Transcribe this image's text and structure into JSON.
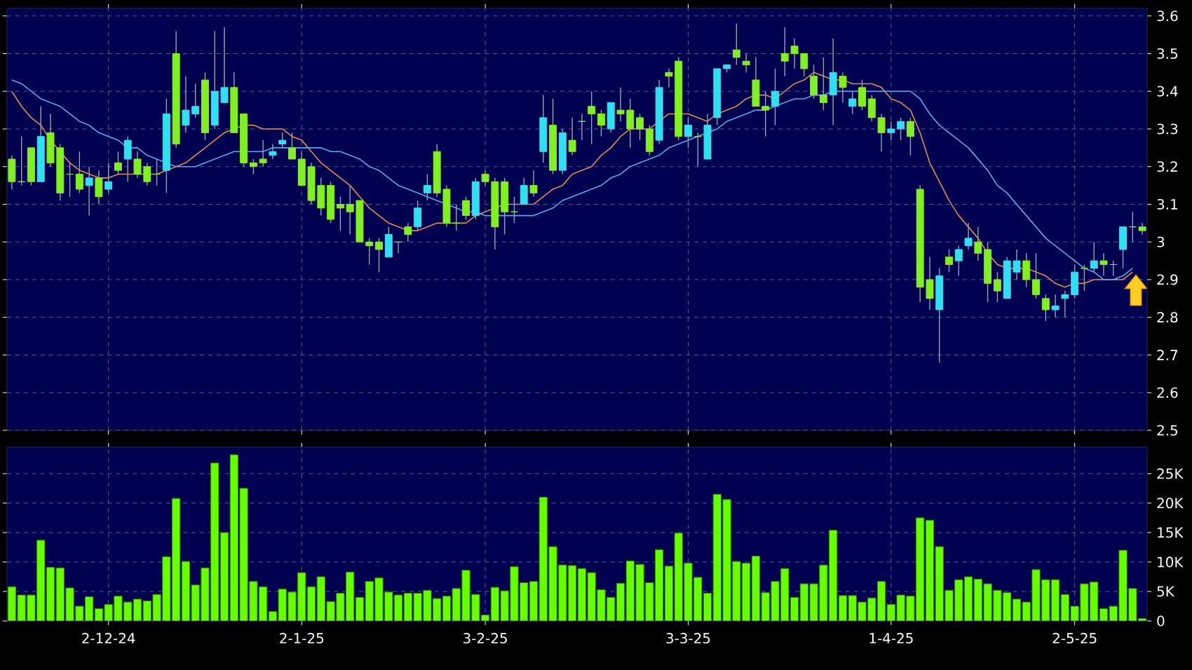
{
  "chart_data": [
    {
      "type": "candlestick",
      "categories": [
        null,
        null,
        null,
        null,
        null,
        null,
        null,
        null,
        null,
        null,
        null,
        null,
        null,
        null,
        null,
        null,
        null,
        null,
        null,
        null,
        null,
        null,
        null,
        null,
        null,
        null,
        null,
        null,
        null,
        null,
        null,
        null,
        null,
        null,
        null,
        null,
        null,
        null,
        null,
        null,
        null,
        null,
        null,
        null,
        null,
        null,
        null,
        null,
        null,
        null,
        null,
        null,
        null,
        null,
        null,
        null,
        null,
        null,
        null,
        null,
        null,
        null,
        null,
        null,
        null,
        null,
        null,
        null,
        null,
        null,
        null,
        null,
        null,
        null,
        null,
        null,
        null,
        null,
        null,
        null,
        null,
        null,
        null,
        null,
        null,
        null,
        null,
        null,
        null,
        null,
        null,
        null,
        null,
        null,
        null,
        null,
        null,
        null,
        null,
        null,
        null,
        null,
        null,
        null,
        null,
        null,
        null,
        null,
        null,
        null,
        null,
        null,
        null,
        null,
        null,
        null,
        null,
        null
      ],
      "ohlc": [
        [
          3.22,
          3.23,
          3.14,
          3.16
        ],
        [
          3.16,
          3.28,
          3.15,
          3.16
        ],
        [
          3.25,
          3.25,
          3.15,
          3.16
        ],
        [
          3.16,
          3.36,
          3.16,
          3.28
        ],
        [
          3.29,
          3.34,
          3.2,
          3.21
        ],
        [
          3.25,
          3.26,
          3.11,
          3.13
        ],
        [
          3.18,
          3.21,
          3.12,
          3.18
        ],
        [
          3.18,
          3.24,
          3.13,
          3.14
        ],
        [
          3.15,
          3.2,
          3.07,
          3.17
        ],
        [
          3.17,
          3.19,
          3.1,
          3.12
        ],
        [
          3.14,
          3.21,
          3.13,
          3.16
        ],
        [
          3.21,
          3.24,
          3.18,
          3.19
        ],
        [
          3.22,
          3.28,
          3.16,
          3.27
        ],
        [
          3.22,
          3.24,
          3.17,
          3.18
        ],
        [
          3.2,
          3.21,
          3.15,
          3.16
        ],
        [
          3.18,
          3.22,
          3.15,
          3.18
        ],
        [
          3.19,
          3.38,
          3.13,
          3.34
        ],
        [
          3.5,
          3.56,
          3.25,
          3.26
        ],
        [
          3.31,
          3.44,
          3.29,
          3.35
        ],
        [
          3.34,
          3.42,
          3.33,
          3.36
        ],
        [
          3.43,
          3.45,
          3.27,
          3.29
        ],
        [
          3.31,
          3.56,
          3.3,
          3.4
        ],
        [
          3.37,
          3.57,
          3.37,
          3.41
        ],
        [
          3.41,
          3.45,
          3.29,
          3.29
        ],
        [
          3.34,
          3.34,
          3.2,
          3.21
        ],
        [
          3.21,
          3.22,
          3.18,
          3.2
        ],
        [
          3.22,
          3.27,
          3.2,
          3.21
        ],
        [
          3.23,
          3.26,
          3.22,
          3.24
        ],
        [
          3.26,
          3.29,
          3.25,
          3.27
        ],
        [
          3.25,
          3.29,
          3.22,
          3.22
        ],
        [
          3.22,
          3.24,
          3.15,
          3.15
        ],
        [
          3.2,
          3.21,
          3.1,
          3.11
        ],
        [
          3.15,
          3.17,
          3.07,
          3.09
        ],
        [
          3.15,
          3.16,
          3.05,
          3.06
        ],
        [
          3.1,
          3.12,
          3.03,
          3.09
        ],
        [
          3.1,
          3.15,
          3.02,
          3.08
        ],
        [
          3.11,
          3.11,
          3.0,
          3.0
        ],
        [
          3.0,
          3.01,
          2.94,
          2.99
        ],
        [
          3.0,
          3.01,
          2.92,
          2.98
        ],
        [
          2.96,
          3.04,
          2.96,
          3.02
        ],
        [
          3.0,
          3.0,
          2.97,
          3.0
        ],
        [
          3.04,
          3.05,
          3.0,
          3.02
        ],
        [
          3.04,
          3.11,
          3.03,
          3.09
        ],
        [
          3.13,
          3.18,
          3.11,
          3.15
        ],
        [
          3.24,
          3.26,
          3.12,
          3.13
        ],
        [
          3.14,
          3.15,
          3.04,
          3.05
        ],
        [
          3.05,
          3.1,
          3.03,
          3.05
        ],
        [
          3.11,
          3.12,
          3.06,
          3.07
        ],
        [
          3.07,
          3.17,
          3.06,
          3.16
        ],
        [
          3.18,
          3.19,
          3.15,
          3.16
        ],
        [
          3.16,
          3.17,
          2.98,
          3.04
        ],
        [
          3.16,
          3.17,
          3.02,
          3.08
        ],
        [
          3.08,
          3.12,
          3.05,
          3.08
        ],
        [
          3.1,
          3.17,
          3.1,
          3.15
        ],
        [
          3.15,
          3.19,
          3.12,
          3.13
        ],
        [
          3.24,
          3.39,
          3.21,
          3.33
        ],
        [
          3.31,
          3.38,
          3.18,
          3.19
        ],
        [
          3.19,
          3.3,
          3.18,
          3.29
        ],
        [
          3.27,
          3.33,
          3.23,
          3.24
        ],
        [
          3.32,
          3.34,
          3.27,
          3.32
        ],
        [
          3.36,
          3.4,
          3.26,
          3.34
        ],
        [
          3.34,
          3.35,
          3.28,
          3.31
        ],
        [
          3.3,
          3.37,
          3.29,
          3.37
        ],
        [
          3.35,
          3.41,
          3.32,
          3.34
        ],
        [
          3.35,
          3.38,
          3.25,
          3.3
        ],
        [
          3.33,
          3.34,
          3.27,
          3.3
        ],
        [
          3.3,
          3.31,
          3.23,
          3.24
        ],
        [
          3.27,
          3.43,
          3.26,
          3.41
        ],
        [
          3.45,
          3.46,
          3.41,
          3.44
        ],
        [
          3.48,
          3.49,
          3.27,
          3.28
        ],
        [
          3.28,
          3.33,
          3.25,
          3.31
        ],
        [
          3.28,
          3.29,
          3.2,
          3.28
        ],
        [
          3.22,
          3.34,
          3.22,
          3.31
        ],
        [
          3.33,
          3.46,
          3.31,
          3.46
        ],
        [
          3.46,
          3.47,
          3.45,
          3.47
        ],
        [
          3.51,
          3.58,
          3.47,
          3.49
        ],
        [
          3.48,
          3.5,
          3.45,
          3.47
        ],
        [
          3.43,
          3.49,
          3.36,
          3.36
        ],
        [
          3.36,
          3.4,
          3.28,
          3.35
        ],
        [
          3.36,
          3.46,
          3.31,
          3.4
        ],
        [
          3.5,
          3.57,
          3.44,
          3.48
        ],
        [
          3.52,
          3.54,
          3.46,
          3.5
        ],
        [
          3.5,
          3.5,
          3.44,
          3.46
        ],
        [
          3.44,
          3.47,
          3.38,
          3.39
        ],
        [
          3.39,
          3.49,
          3.35,
          3.37
        ],
        [
          3.39,
          3.54,
          3.31,
          3.45
        ],
        [
          3.44,
          3.45,
          3.37,
          3.41
        ],
        [
          3.36,
          3.4,
          3.34,
          3.38
        ],
        [
          3.41,
          3.43,
          3.35,
          3.36
        ],
        [
          3.38,
          3.39,
          3.32,
          3.33
        ],
        [
          3.33,
          3.34,
          3.24,
          3.29
        ],
        [
          3.29,
          3.32,
          3.27,
          3.3
        ],
        [
          3.3,
          3.33,
          3.27,
          3.32
        ],
        [
          3.32,
          3.33,
          3.23,
          3.28
        ],
        [
          3.14,
          3.15,
          2.84,
          2.88
        ],
        [
          2.9,
          2.96,
          2.82,
          2.85
        ],
        [
          2.82,
          2.93,
          2.68,
          2.91
        ],
        [
          2.96,
          2.98,
          2.92,
          2.94
        ],
        [
          2.95,
          2.99,
          2.91,
          2.98
        ],
        [
          2.99,
          3.05,
          2.98,
          3.01
        ],
        [
          3.0,
          3.04,
          2.95,
          2.97
        ],
        [
          2.98,
          3.0,
          2.84,
          2.89
        ],
        [
          2.9,
          2.92,
          2.84,
          2.87
        ],
        [
          2.85,
          2.96,
          2.85,
          2.95
        ],
        [
          2.92,
          2.98,
          2.9,
          2.95
        ],
        [
          2.95,
          2.97,
          2.88,
          2.9
        ],
        [
          2.9,
          2.97,
          2.85,
          2.86
        ],
        [
          2.85,
          2.86,
          2.79,
          2.82
        ],
        [
          2.82,
          2.86,
          2.8,
          2.83
        ],
        [
          2.85,
          2.87,
          2.8,
          2.86
        ],
        [
          2.86,
          2.94,
          2.85,
          2.92
        ],
        [
          2.93,
          2.94,
          2.87,
          2.93
        ],
        [
          2.93,
          3.0,
          2.92,
          2.95
        ],
        [
          2.95,
          2.97,
          2.91,
          2.94
        ],
        [
          2.94,
          2.95,
          2.91,
          2.94
        ],
        [
          2.98,
          3.04,
          2.93,
          3.04
        ],
        [
          3.04,
          3.08,
          3.0,
          3.04
        ],
        [
          3.04,
          3.05,
          3.02,
          3.03
        ]
      ],
      "colors": [
        "#80f020",
        "#80f020",
        "#80f020",
        "#30e0f0",
        "#80f020",
        "#80f020",
        "#80f020",
        "#80f020",
        "#30e0f0",
        "#80f020",
        "#30e0f0",
        "#80f020",
        "#30e0f0",
        "#80f020",
        "#80f020",
        "#80f020",
        "#30e0f0",
        "#80f020",
        "#30e0f0",
        "#30e0f0",
        "#80f020",
        "#30e0f0",
        "#30e0f0",
        "#80f020",
        "#80f020",
        "#80f020",
        "#80f020",
        "#30e0f0",
        "#30e0f0",
        "#80f020",
        "#80f020",
        "#80f020",
        "#80f020",
        "#80f020",
        "#80f020",
        "#80f020",
        "#80f020",
        "#80f020",
        "#80f020",
        "#30e0f0",
        "#80f020",
        "#80f020",
        "#30e0f0",
        "#30e0f0",
        "#80f020",
        "#80f020",
        "#80f020",
        "#80f020",
        "#30e0f0",
        "#80f020",
        "#80f020",
        "#80f020",
        "#80f020",
        "#30e0f0",
        "#80f020",
        "#30e0f0",
        "#80f020",
        "#30e0f0",
        "#80f020",
        "#80f020",
        "#80f020",
        "#80f020",
        "#30e0f0",
        "#80f020",
        "#80f020",
        "#80f020",
        "#80f020",
        "#30e0f0",
        "#80f020",
        "#80f020",
        "#30e0f0",
        "#80f020",
        "#30e0f0",
        "#30e0f0",
        "#30e0f0",
        "#80f020",
        "#80f020",
        "#80f020",
        "#80f020",
        "#30e0f0",
        "#80f020",
        "#80f020",
        "#80f020",
        "#80f020",
        "#80f020",
        "#30e0f0",
        "#80f020",
        "#30e0f0",
        "#80f020",
        "#80f020",
        "#80f020",
        "#30e0f0",
        "#30e0f0",
        "#80f020",
        "#80f020",
        "#80f020",
        "#30e0f0",
        "#80f020",
        "#30e0f0",
        "#30e0f0",
        "#80f020",
        "#80f020",
        "#80f020",
        "#30e0f0",
        "#30e0f0",
        "#80f020",
        "#80f020",
        "#80f020",
        "#30e0f0",
        "#30e0f0",
        "#30e0f0",
        "#80f020",
        "#30e0f0",
        "#80f020",
        "#80f020",
        "#30e0f0",
        "#80f020",
        "#80f020"
      ],
      "series": [
        {
          "type": "line",
          "color": "#e8894a",
          "values": [
            3.4,
            3.36,
            3.33,
            3.31,
            3.27,
            3.24,
            3.21,
            3.19,
            3.18,
            3.17,
            3.17,
            3.18,
            3.18,
            3.18,
            3.18,
            3.18,
            3.19,
            3.2,
            3.21,
            3.23,
            3.25,
            3.27,
            3.29,
            3.3,
            3.31,
            3.31,
            3.3,
            3.3,
            3.3,
            3.28,
            3.27,
            3.24,
            3.21,
            3.19,
            3.17,
            3.15,
            3.12,
            3.09,
            3.07,
            3.05,
            3.04,
            3.03,
            3.03,
            3.04,
            3.05,
            3.05,
            3.05,
            3.05,
            3.07,
            3.08,
            3.09,
            3.1,
            3.1,
            3.1,
            3.1,
            3.12,
            3.14,
            3.15,
            3.18,
            3.19,
            3.2,
            3.23,
            3.25,
            3.28,
            3.3,
            3.3,
            3.3,
            3.32,
            3.34,
            3.34,
            3.34,
            3.33,
            3.32,
            3.34,
            3.35,
            3.36,
            3.38,
            3.39,
            3.39,
            3.38,
            3.4,
            3.42,
            3.43,
            3.45,
            3.44,
            3.43,
            3.43,
            3.42,
            3.42,
            3.42,
            3.41,
            3.38,
            3.37,
            3.35,
            3.29,
            3.21,
            3.16,
            3.11,
            3.07,
            3.04,
            3.01,
            2.97,
            2.94,
            2.93,
            2.93,
            2.93,
            2.92,
            2.91,
            2.89,
            2.88,
            2.89,
            2.89,
            2.9,
            2.9,
            2.9,
            2.9,
            2.92,
            null
          ]
        },
        {
          "type": "line",
          "color": "#4aaef0",
          "values": [
            3.43,
            3.42,
            3.4,
            3.38,
            3.37,
            3.36,
            3.34,
            3.32,
            3.31,
            3.29,
            3.28,
            3.27,
            3.25,
            3.25,
            3.23,
            3.22,
            3.21,
            3.2,
            3.2,
            3.2,
            3.21,
            3.22,
            3.23,
            3.24,
            3.24,
            3.24,
            3.24,
            3.25,
            3.25,
            3.25,
            3.25,
            3.25,
            3.25,
            3.24,
            3.24,
            3.23,
            3.22,
            3.2,
            3.19,
            3.17,
            3.15,
            3.14,
            3.13,
            3.12,
            3.11,
            3.1,
            3.09,
            3.08,
            3.08,
            3.07,
            3.07,
            3.07,
            3.07,
            3.07,
            3.07,
            3.08,
            3.09,
            3.11,
            3.12,
            3.13,
            3.14,
            3.15,
            3.17,
            3.18,
            3.2,
            3.21,
            3.22,
            3.23,
            3.25,
            3.26,
            3.27,
            3.28,
            3.29,
            3.3,
            3.32,
            3.33,
            3.34,
            3.35,
            3.35,
            3.36,
            3.37,
            3.38,
            3.38,
            3.39,
            3.39,
            3.4,
            3.4,
            3.4,
            3.4,
            3.4,
            3.4,
            3.4,
            3.4,
            3.4,
            3.38,
            3.34,
            3.31,
            3.29,
            3.27,
            3.25,
            3.22,
            3.19,
            3.15,
            3.13,
            3.1,
            3.07,
            3.04,
            3.01,
            2.99,
            2.97,
            2.95,
            2.93,
            2.92,
            2.9,
            2.9,
            2.91,
            2.93,
            null
          ]
        }
      ],
      "ylim": [
        2.5,
        3.62
      ],
      "yticks": [
        2.5,
        2.6,
        2.7,
        2.8,
        2.9,
        3,
        3.1,
        3.2,
        3.3,
        3.4,
        3.5,
        3.6
      ],
      "grid": true,
      "tick_labels": "y"
    },
    {
      "type": "bar",
      "categories": [
        null,
        null,
        null,
        null,
        null,
        null,
        null,
        null,
        null,
        null,
        "2-12-24",
        null,
        null,
        null,
        null,
        null,
        null,
        null,
        null,
        null,
        null,
        null,
        null,
        null,
        null,
        null,
        null,
        null,
        null,
        null,
        "2-1-25",
        null,
        null,
        null,
        null,
        null,
        null,
        null,
        null,
        null,
        null,
        null,
        null,
        null,
        null,
        null,
        null,
        null,
        null,
        "3-2-25",
        null,
        null,
        null,
        null,
        null,
        null,
        null,
        null,
        null,
        null,
        null,
        null,
        null,
        null,
        null,
        null,
        null,
        null,
        null,
        null,
        "3-3-25",
        null,
        null,
        null,
        null,
        null,
        null,
        null,
        null,
        null,
        null,
        null,
        null,
        null,
        null,
        null,
        null,
        null,
        null,
        null,
        null,
        "1-4-25",
        null,
        null,
        null,
        null,
        null,
        null,
        null,
        null,
        null,
        null,
        null,
        null,
        null,
        null,
        null,
        null,
        null,
        null,
        "2-5-25",
        null,
        null,
        null,
        null,
        null,
        null,
        null
      ],
      "values": [
        5800,
        4400,
        4400,
        13700,
        9100,
        9000,
        5600,
        2500,
        4100,
        2100,
        2800,
        4200,
        3200,
        3700,
        3400,
        4500,
        10900,
        20800,
        10100,
        6100,
        9000,
        26800,
        15000,
        28200,
        22500,
        6700,
        5800,
        1600,
        5400,
        4900,
        8200,
        5800,
        7500,
        3300,
        4700,
        8300,
        4000,
        6700,
        7300,
        4900,
        4400,
        4700,
        4700,
        5200,
        3800,
        4200,
        5500,
        8600,
        4500,
        1000,
        5700,
        5100,
        9200,
        6500,
        6700,
        21000,
        12600,
        9500,
        9400,
        8900,
        8200,
        5300,
        4000,
        6400,
        10200,
        9600,
        6500,
        12100,
        9300,
        14900,
        9800,
        7400,
        4700,
        21500,
        20600,
        10100,
        9800,
        11000,
        4800,
        6700,
        8900,
        4000,
        6300,
        6300,
        9500,
        15400,
        4300,
        4300,
        3200,
        3900,
        6700,
        2800,
        4400,
        4200,
        17500,
        17100,
        12600,
        5200,
        7000,
        7500,
        7100,
        6300,
        5200,
        4800,
        3700,
        3200,
        8700,
        7000,
        7000,
        4500,
        2500,
        6300,
        6600,
        2100,
        2500,
        12000,
        5500,
        400
      ],
      "color": "#66ff00",
      "ylim": [
        0,
        29500
      ],
      "yticks": [
        0,
        {
          "value": 5000,
          "label": "5K"
        },
        {
          "value": 10000,
          "label": "10K"
        },
        {
          "value": 15000,
          "label": "15K"
        },
        {
          "value": 20000,
          "label": "20K"
        },
        {
          "value": 25000,
          "label": "25K"
        }
      ],
      "grid": true
    }
  ]
}
